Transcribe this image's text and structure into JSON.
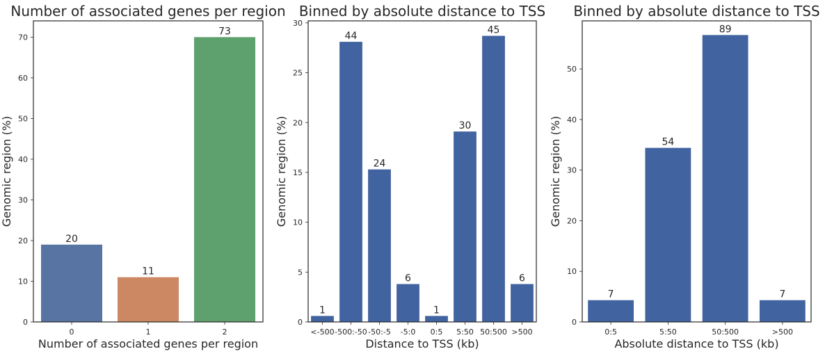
{
  "chart_data": [
    {
      "type": "bar",
      "title": "Number of associated genes per region",
      "xlabel": "Number of associated genes per region",
      "ylabel": "Genomic region (%)",
      "categories": [
        "0",
        "1",
        "2"
      ],
      "values": [
        19,
        11,
        70
      ],
      "bar_labels": [
        "20",
        "11",
        "73"
      ],
      "colors": [
        "#5874a3",
        "#cc8863",
        "#5ea06e"
      ],
      "ylim": [
        0,
        74
      ],
      "yticks": [
        0,
        10,
        20,
        30,
        40,
        50,
        60,
        70
      ],
      "grid": false
    },
    {
      "type": "bar",
      "title": "Binned by absolute distance to TSS",
      "xlabel": "Distance to TSS (kb)",
      "ylabel": "Genomic region (%)",
      "categories": [
        "<-500",
        "-500:-50",
        "-50:-5",
        "-5:0",
        "0:5",
        "5:50",
        "50:500",
        ">500"
      ],
      "values": [
        0.6,
        28.1,
        15.3,
        3.8,
        0.6,
        19.1,
        28.7,
        3.8
      ],
      "bar_labels": [
        "1",
        "44",
        "24",
        "6",
        "1",
        "30",
        "45",
        "6"
      ],
      "colors": [
        "#4163a0"
      ],
      "ylim": [
        0,
        30.2
      ],
      "yticks": [
        0,
        5,
        10,
        15,
        20,
        25,
        30
      ],
      "grid": false
    },
    {
      "type": "bar",
      "title": "Binned by absolute distance to TSS",
      "xlabel": "Absolute distance to TSS (kb)",
      "ylabel": "Genomic region (%)",
      "categories": [
        "0:5",
        "5:50",
        "50:500",
        ">500"
      ],
      "values": [
        4.3,
        34.4,
        56.7,
        4.3
      ],
      "bar_labels": [
        "7",
        "54",
        "89",
        "7"
      ],
      "colors": [
        "#4163a0"
      ],
      "ylim": [
        0,
        59.5
      ],
      "yticks": [
        0,
        10,
        20,
        30,
        40,
        50
      ],
      "grid": false
    }
  ]
}
